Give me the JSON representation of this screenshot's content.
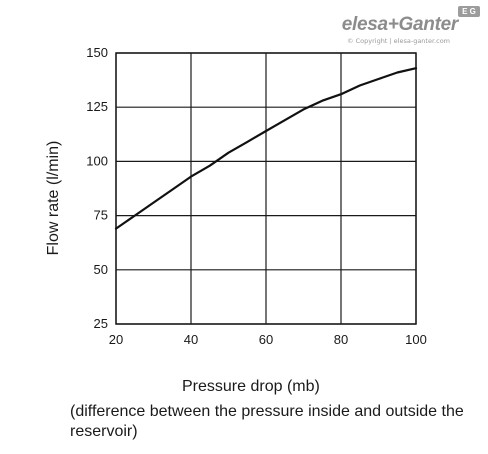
{
  "logo": {
    "brand": "elesa+Ganter",
    "copyright": "© Copyright | elesa-ganter.com",
    "badge": "E G"
  },
  "chart_data": {
    "type": "line",
    "title": "",
    "xlabel": "Pressure drop (mb)",
    "xlabel_note": "(difference between the pressure inside and outside the reservoir)",
    "ylabel": "Flow rate (l/min)",
    "xlim": [
      20,
      100
    ],
    "ylim": [
      25,
      150
    ],
    "xticks": [
      20,
      40,
      60,
      80,
      100
    ],
    "yticks": [
      25,
      50,
      75,
      100,
      125,
      150
    ],
    "grid": true,
    "series": [
      {
        "x": [
          20,
          25,
          30,
          35,
          40,
          45,
          50,
          55,
          60,
          65,
          70,
          75,
          80,
          85,
          90,
          95,
          100
        ],
        "y": [
          69,
          75,
          81,
          87,
          93,
          98,
          104,
          109,
          114,
          119,
          124,
          128,
          131,
          135,
          138,
          141,
          143
        ],
        "color": "#111111"
      }
    ]
  }
}
